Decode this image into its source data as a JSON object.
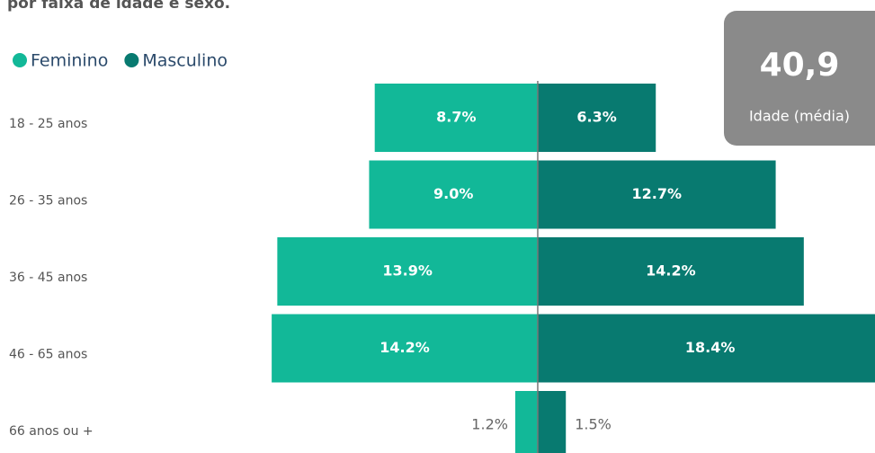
{
  "chart_data": {
    "type": "pyramid",
    "title": "por faixa de idade e sexo.",
    "categories": [
      "18 - 25 anos",
      "26 - 35 anos",
      "36 - 45 anos",
      "46 - 65 anos",
      "66 anos ou +"
    ],
    "series": [
      {
        "name": "Feminino",
        "color": "#12b898",
        "values": [
          8.7,
          9.0,
          13.9,
          14.2,
          1.2
        ],
        "value_labels": [
          "8.7%",
          "9.0%",
          "13.9%",
          "14.2%",
          "1.2%"
        ]
      },
      {
        "name": "Masculino",
        "color": "#087a70",
        "values": [
          6.3,
          12.7,
          14.2,
          18.4,
          1.5
        ],
        "value_labels": [
          "6.3%",
          "12.7%",
          "14.2%",
          "18.4%",
          "1.5%"
        ]
      }
    ],
    "xlim": [
      -28.7,
      18
    ],
    "badge": {
      "value": "40,9",
      "label": "Idade (média)"
    }
  }
}
